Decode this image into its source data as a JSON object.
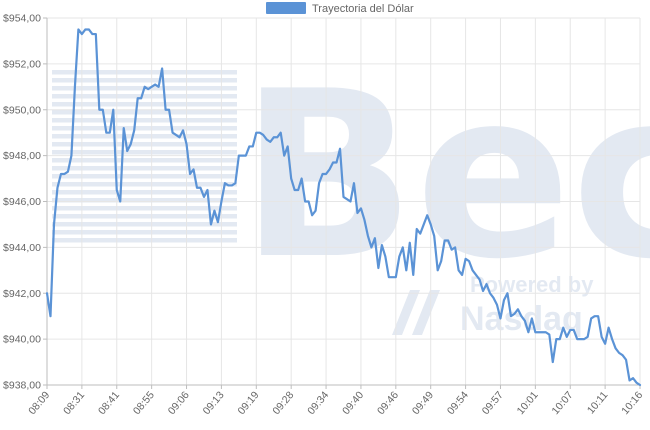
{
  "chart_data": {
    "type": "line",
    "legend_position": "top-center",
    "grid": true,
    "series": [
      {
        "name": "Trayectoria del Dólar",
        "color": "#5b93d6",
        "values": [
          942.0,
          941.0,
          945.0,
          946.6,
          947.2,
          947.2,
          947.3,
          948.0,
          951.0,
          953.5,
          953.3,
          953.5,
          953.5,
          953.3,
          953.3,
          950.0,
          950.0,
          949.0,
          949.0,
          950.0,
          946.5,
          946.0,
          949.2,
          948.2,
          948.5,
          949.1,
          950.5,
          950.5,
          951.0,
          950.9,
          951.0,
          951.1,
          951.0,
          951.8,
          950.0,
          950.0,
          949.0,
          948.9,
          948.8,
          949.1,
          948.5,
          947.2,
          947.4,
          946.6,
          946.6,
          946.2,
          946.5,
          945.0,
          945.6,
          945.1,
          946.0,
          946.8,
          946.7,
          946.7,
          946.8,
          948.0,
          948.0,
          948.0,
          948.4,
          948.4,
          949.0,
          949.0,
          948.9,
          948.7,
          948.6,
          948.8,
          948.8,
          949.0,
          948.0,
          948.4,
          947.0,
          946.5,
          946.5,
          947.0,
          946.0,
          946.0,
          945.4,
          945.6,
          946.8,
          947.2,
          947.2,
          947.4,
          947.7,
          947.7,
          948.3,
          946.2,
          946.1,
          946.0,
          946.8,
          945.5,
          945.7,
          945.2,
          944.5,
          944.0,
          944.4,
          943.1,
          944.1,
          943.6,
          942.7,
          942.7,
          942.7,
          943.6,
          944.0,
          943.0,
          944.2,
          942.8,
          944.8,
          944.6,
          945.0,
          945.4,
          945.0,
          944.5,
          943.0,
          943.4,
          944.3,
          944.3,
          943.9,
          944.0,
          943.0,
          942.8,
          943.5,
          943.4,
          943.0,
          942.8,
          942.6,
          942.1,
          942.4,
          942.0,
          941.8,
          941.5,
          940.9,
          941.7,
          942.0,
          941.0,
          941.1,
          941.3,
          941.0,
          940.8,
          940.3,
          940.9,
          940.3,
          940.3,
          940.3,
          940.3,
          940.2,
          939.0,
          940.0,
          940.0,
          940.5,
          940.1,
          940.4,
          940.4,
          940.0,
          940.0,
          940.0,
          940.1,
          940.9,
          941.0,
          941.0,
          940.1,
          939.8,
          940.5,
          940.0,
          939.6,
          939.4,
          939.3,
          939.1,
          938.2,
          938.3,
          938.1,
          938.0
        ]
      }
    ],
    "x_tick_labels": [
      "08:09",
      "08:31",
      "08:41",
      "08:55",
      "09:06",
      "09:13",
      "09:19",
      "09:28",
      "09:34",
      "09:40",
      "09:46",
      "09:49",
      "09:54",
      "09:57",
      "10:01",
      "10:07",
      "10:11",
      "10:16"
    ],
    "y_tick_labels": [
      "$938,00",
      "$940,00",
      "$942,00",
      "$944,00",
      "$946,00",
      "$948,00",
      "$950,00",
      "$952,00",
      "$954,00"
    ],
    "y_ticks": [
      938,
      940,
      942,
      944,
      946,
      948,
      950,
      952,
      954
    ],
    "ylim": [
      938,
      954
    ]
  },
  "watermark": {
    "brand": "Bec",
    "powered_line1": "Powered by",
    "powered_line2": "Nasdaq",
    "color": "#e3e9f2"
  },
  "colors": {
    "grid": "#e6e6e6",
    "axis_line": "#bdbdbd",
    "text": "#666666"
  }
}
